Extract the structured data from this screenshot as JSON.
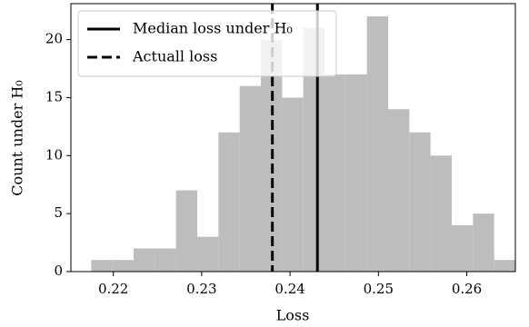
{
  "chart_data": {
    "type": "histogram",
    "xlabel": "Loss",
    "ylabel": "Count under H₀",
    "bins": [
      0.2175,
      0.2199,
      0.2223,
      0.2247,
      0.2271,
      0.2295,
      0.2319,
      0.2343,
      0.2367,
      0.2391,
      0.2415,
      0.2439,
      0.2463,
      0.2487,
      0.2511,
      0.2535,
      0.2559,
      0.2583,
      0.2607,
      0.2631,
      0.2655
    ],
    "counts": [
      1,
      1,
      2,
      2,
      7,
      3,
      12,
      16,
      20,
      15,
      21,
      17,
      17,
      22,
      14,
      12,
      10,
      4,
      5,
      1
    ],
    "color": "#bdbdbd",
    "lines": [
      {
        "name": "Median loss under H₀",
        "value": 0.2431,
        "style": "solid",
        "color": "#000000"
      },
      {
        "name": "Actuall loss",
        "value": 0.238,
        "style": "dashed",
        "color": "#000000"
      }
    ],
    "xlim": [
      0.2152,
      0.2655
    ],
    "ylim": [
      0,
      23.1
    ],
    "xticks": [
      0.22,
      0.23,
      0.24,
      0.25,
      0.26
    ],
    "yticks": [
      0,
      5,
      10,
      15,
      20
    ],
    "legend": "upper left"
  }
}
